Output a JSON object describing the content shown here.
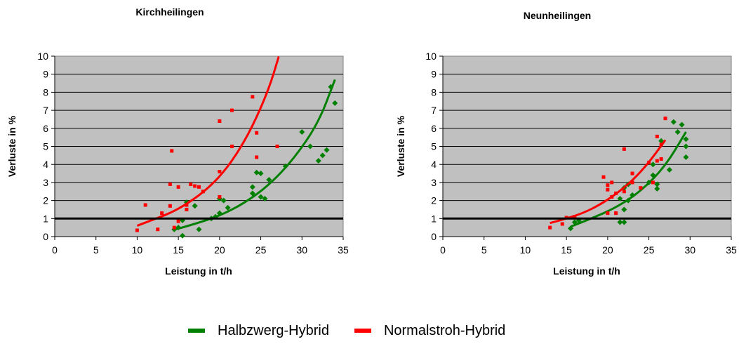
{
  "chart_data": [
    {
      "type": "scatter",
      "title": "Kirchheilingen",
      "xlabel": "Leistung in t/h",
      "ylabel": "Verluste in %",
      "xlim": [
        0,
        35
      ],
      "ylim": [
        0,
        10
      ],
      "xticks": [
        "0",
        "5",
        "10",
        "15",
        "20",
        "25",
        "30",
        "35"
      ],
      "yticks": [
        "0",
        "1",
        "2",
        "3",
        "4",
        "5",
        "6",
        "7",
        "8",
        "9",
        "10"
      ],
      "grid": true,
      "reference_line": 1,
      "series": [
        {
          "name": "Halbzwerg-Hybrid",
          "color": "#008000",
          "points": [
            [
              14.5,
              0.4
            ],
            [
              15,
              0.5
            ],
            [
              15.5,
              0.9
            ],
            [
              15.5,
              0.05
            ],
            [
              16,
              1.9
            ],
            [
              17,
              1.7
            ],
            [
              17.5,
              0.4
            ],
            [
              19,
              1
            ],
            [
              19.5,
              1.1
            ],
            [
              20,
              1.3
            ],
            [
              20,
              2.1
            ],
            [
              20.5,
              2
            ],
            [
              21,
              1.6
            ],
            [
              24,
              2.4
            ],
            [
              24,
              2.75
            ],
            [
              24.5,
              3.55
            ],
            [
              25,
              3.5
            ],
            [
              25,
              2.2
            ],
            [
              25.5,
              2.1
            ],
            [
              26,
              3.15
            ],
            [
              28,
              3.9
            ],
            [
              30,
              5.8
            ],
            [
              31,
              5
            ],
            [
              32,
              4.2
            ],
            [
              32.5,
              4.5
            ],
            [
              33,
              4.8
            ],
            [
              33.5,
              8.3
            ],
            [
              34,
              7.4
            ]
          ],
          "trend": [
            [
              14.5,
              0.38
            ],
            [
              17,
              0.7
            ],
            [
              20,
              1.15
            ],
            [
              23,
              1.85
            ],
            [
              26,
              2.85
            ],
            [
              29,
              4.3
            ],
            [
              32,
              6.3
            ],
            [
              34,
              8.7
            ]
          ]
        },
        {
          "name": "Normalstroh-Hybrid",
          "color": "#ff0000",
          "points": [
            [
              10,
              0.35
            ],
            [
              11,
              1.75
            ],
            [
              12.5,
              0.4
            ],
            [
              13,
              1.3
            ],
            [
              14,
              2.9
            ],
            [
              14,
              1.7
            ],
            [
              14.2,
              4.75
            ],
            [
              14.5,
              0.5
            ],
            [
              15,
              2.75
            ],
            [
              15,
              0.85
            ],
            [
              16,
              1.5
            ],
            [
              16,
              1.75
            ],
            [
              16.5,
              2.9
            ],
            [
              17,
              2.8
            ],
            [
              17.5,
              2.75
            ],
            [
              18,
              2.5
            ],
            [
              20,
              2.2
            ],
            [
              20,
              3.6
            ],
            [
              20,
              6.4
            ],
            [
              21.5,
              5
            ],
            [
              21.5,
              7
            ],
            [
              24,
              7.75
            ],
            [
              24.5,
              5.75
            ],
            [
              24.5,
              4.4
            ],
            [
              27,
              5
            ]
          ],
          "trend": [
            [
              10,
              0.6
            ],
            [
              12,
              0.95
            ],
            [
              14,
              1.3
            ],
            [
              16,
              1.8
            ],
            [
              18,
              2.45
            ],
            [
              20,
              3.3
            ],
            [
              22,
              4.5
            ],
            [
              24,
              6.1
            ],
            [
              26,
              8.2
            ],
            [
              27.2,
              10
            ]
          ]
        }
      ]
    },
    {
      "type": "scatter",
      "title": "Neunheilingen",
      "xlabel": "Leistung in t/h",
      "ylabel": "Verluste in %",
      "xlim": [
        0,
        35
      ],
      "ylim": [
        0,
        10
      ],
      "xticks": [
        "0",
        "5",
        "10",
        "15",
        "20",
        "25",
        "30",
        "35"
      ],
      "yticks": [
        "0",
        "1",
        "2",
        "3",
        "4",
        "5",
        "6",
        "7",
        "8",
        "9",
        "10"
      ],
      "grid": true,
      "reference_line": 1,
      "series": [
        {
          "name": "Halbzwerg-Hybrid",
          "color": "#008000",
          "points": [
            [
              15.5,
              0.45
            ],
            [
              16,
              0.8
            ],
            [
              16.5,
              0.9
            ],
            [
              21.5,
              0.8
            ],
            [
              21.5,
              2.1
            ],
            [
              22,
              1.5
            ],
            [
              22,
              2.7
            ],
            [
              22,
              0.8
            ],
            [
              22.5,
              2.0
            ],
            [
              22.5,
              2.9
            ],
            [
              23,
              2.3
            ],
            [
              25,
              3.0
            ],
            [
              25.5,
              3.4
            ],
            [
              25.5,
              4.0
            ],
            [
              26,
              2.9
            ],
            [
              26,
              2.65
            ],
            [
              26.5,
              5.3
            ],
            [
              27.5,
              3.7
            ],
            [
              28,
              6.35
            ],
            [
              28.5,
              5.8
            ],
            [
              29,
              6.2
            ],
            [
              29.5,
              5.4
            ],
            [
              29.5,
              4.4
            ],
            [
              29.5,
              5.0
            ]
          ],
          "trend": [
            [
              15.5,
              0.55
            ],
            [
              18,
              1.0
            ],
            [
              21,
              1.6
            ],
            [
              24,
              2.5
            ],
            [
              27,
              3.9
            ],
            [
              29.5,
              5.8
            ]
          ]
        },
        {
          "name": "Normalstroh-Hybrid",
          "color": "#ff0000",
          "points": [
            [
              13,
              0.5
            ],
            [
              14.5,
              0.7
            ],
            [
              15,
              1.05
            ],
            [
              16,
              1.1
            ],
            [
              19.5,
              3.3
            ],
            [
              20,
              2.6
            ],
            [
              20,
              2.85
            ],
            [
              20,
              1.3
            ],
            [
              20.5,
              3.0
            ],
            [
              20.5,
              2.2
            ],
            [
              21,
              2.4
            ],
            [
              21,
              1.3
            ],
            [
              22,
              2.5
            ],
            [
              22,
              4.85
            ],
            [
              23,
              3.5
            ],
            [
              23,
              3.0
            ],
            [
              24,
              2.7
            ],
            [
              25,
              4.1
            ],
            [
              25.5,
              3.0
            ],
            [
              26,
              5.55
            ],
            [
              26,
              4.2
            ],
            [
              26.5,
              5.1
            ],
            [
              26.5,
              4.3
            ],
            [
              27,
              6.55
            ]
          ],
          "trend": [
            [
              13,
              0.75
            ],
            [
              15,
              1.0
            ],
            [
              17,
              1.3
            ],
            [
              19,
              1.75
            ],
            [
              21,
              2.35
            ],
            [
              23,
              3.1
            ],
            [
              25,
              4.1
            ],
            [
              27,
              5.35
            ]
          ]
        }
      ]
    }
  ],
  "legend": [
    {
      "label": "Halbzwerg-Hybrid",
      "color": "#008000"
    },
    {
      "label": "Normalstroh-Hybrid",
      "color": "#ff0000"
    }
  ]
}
